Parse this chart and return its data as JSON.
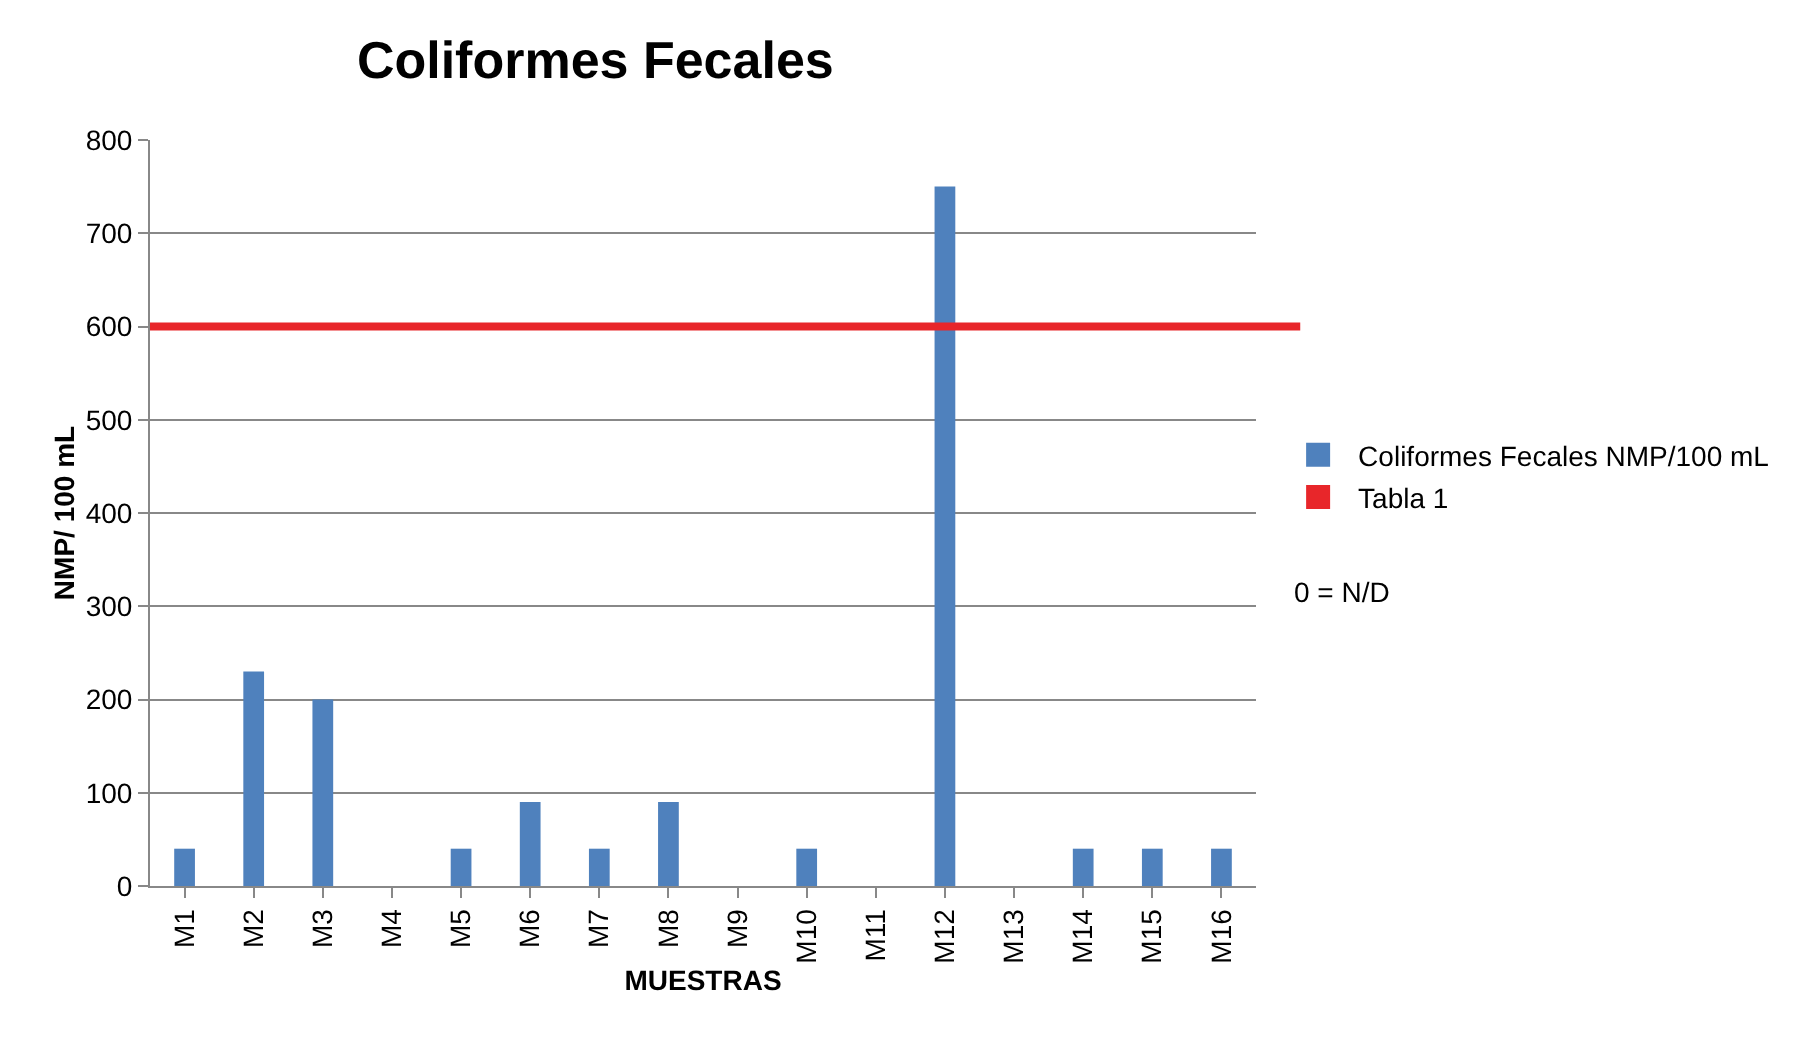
{
  "chart_data": {
    "type": "bar",
    "title": "Coliformes Fecales",
    "xlabel": "MUESTRAS",
    "ylabel": "NMP/ 100 mL",
    "categories": [
      "M1",
      "M2",
      "M3",
      "M4",
      "M5",
      "M6",
      "M7",
      "M8",
      "M9",
      "M10",
      "M11",
      "M12",
      "M13",
      "M14",
      "M15",
      "M16"
    ],
    "series": [
      {
        "name": "Coliformes Fecales NMP/100 mL",
        "color": "#4f81bd",
        "values": [
          40,
          230,
          200,
          0,
          40,
          90,
          40,
          90,
          0,
          40,
          0,
          750,
          0,
          40,
          40,
          40
        ]
      }
    ],
    "ylim": [
      0,
      800
    ],
    "yticks": [
      0,
      100,
      200,
      300,
      400,
      500,
      600,
      700,
      800
    ],
    "grid": "y",
    "legend": "right",
    "ref_lines": [
      {
        "axis": "y",
        "value": 600,
        "label": "Tabla 1",
        "color": "#e8262a"
      }
    ],
    "annotations": [
      "0 = N/D"
    ]
  }
}
